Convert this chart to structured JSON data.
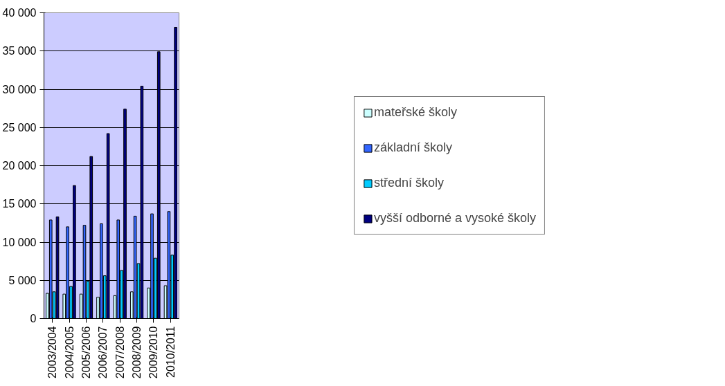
{
  "chart_data": {
    "type": "bar",
    "categories": [
      "2003/2004",
      "2004/2005",
      "2005/2006",
      "2006/2007",
      "2007/2008",
      "2008/2009",
      "2009/2010",
      "2010/2011"
    ],
    "series": [
      {
        "name": "mateřské školy",
        "color": "#ccffff",
        "values": [
          3300,
          3200,
          3200,
          2800,
          3000,
          3500,
          4000,
          4300
        ]
      },
      {
        "name": "základní školy",
        "color": "#3366ff",
        "values": [
          12900,
          12000,
          12200,
          12400,
          12900,
          13400,
          13700,
          14000
        ]
      },
      {
        "name": "střední školy",
        "color": "#00ccff",
        "values": [
          3500,
          4200,
          4900,
          5600,
          6300,
          7200,
          7900,
          8300
        ]
      },
      {
        "name": "vyšší odborné a vysoké školy",
        "color": "#000080",
        "values": [
          13300,
          17400,
          21200,
          24200,
          27400,
          30400,
          34900,
          38100
        ]
      }
    ],
    "ylim": [
      0,
      40000
    ],
    "yticks": [
      0,
      {
        "value": 5000,
        "label": "5 000"
      },
      {
        "value": 10000,
        "label": "10 000"
      },
      {
        "value": 15000,
        "label": "15 000"
      },
      {
        "value": 20000,
        "label": "20 000"
      },
      {
        "value": 25000,
        "label": "25 000"
      },
      {
        "value": 30000,
        "label": "30 000"
      },
      {
        "value": 35000,
        "label": "35 000"
      },
      {
        "value": 40000,
        "label": "40 000"
      }
    ],
    "grid": "y",
    "legend": "right"
  }
}
